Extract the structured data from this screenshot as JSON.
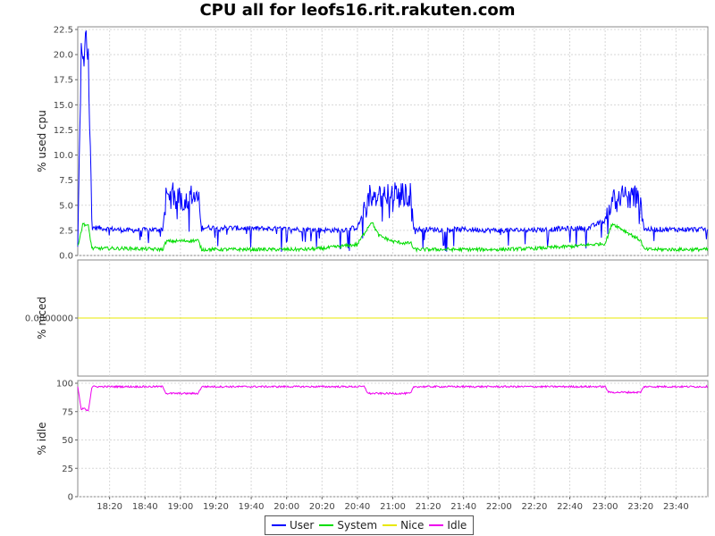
{
  "title": "CPU all for leofs16.rit.rakuten.com",
  "colors": {
    "User": "#0000ff",
    "System": "#00dd00",
    "Nice": "#e8e800",
    "Idle": "#ee00ee"
  },
  "legend": {
    "placement": "bottom",
    "items": [
      {
        "label": "User",
        "color": "#0000ff"
      },
      {
        "label": "System",
        "color": "#00dd00"
      },
      {
        "label": "Nice",
        "color": "#e8e800"
      },
      {
        "label": "Idle",
        "color": "#ee00ee"
      }
    ]
  },
  "chart_data": [
    {
      "type": "line",
      "ylabel": "% used cpu",
      "ylim": [
        0,
        22.5
      ],
      "yticks": [
        "0.0",
        "2.5",
        "5.0",
        "7.5",
        "10.0",
        "12.5",
        "15.0",
        "17.5",
        "20.0",
        "22.5"
      ],
      "grid": true,
      "series": [
        {
          "name": "User",
          "x": [
            "18:02",
            "18:04",
            "18:05",
            "18:07",
            "18:08",
            "18:10",
            "18:30",
            "18:50",
            "18:52",
            "19:10",
            "19:12",
            "19:40",
            "20:10",
            "20:30",
            "20:40",
            "20:44",
            "20:47",
            "21:00",
            "21:10",
            "21:12",
            "21:40",
            "22:00",
            "22:30",
            "22:40",
            "22:50",
            "23:00",
            "23:04",
            "23:20",
            "23:22",
            "23:40",
            "23:58"
          ],
          "y": [
            0.8,
            20,
            19,
            21.5,
            19.5,
            2.8,
            2.5,
            2.6,
            6,
            5.5,
            2.8,
            2.7,
            2.6,
            2.5,
            2.8,
            4.5,
            6,
            6,
            6,
            2.6,
            2.6,
            2.5,
            2.6,
            2.7,
            2.7,
            3.5,
            5.8,
            5.8,
            2.6,
            2.6,
            2.6
          ]
        },
        {
          "name": "System",
          "x": [
            "18:02",
            "18:05",
            "18:08",
            "18:10",
            "18:30",
            "18:50",
            "18:52",
            "19:10",
            "19:12",
            "19:40",
            "20:10",
            "20:20",
            "20:30",
            "20:40",
            "20:48",
            "20:52",
            "21:00",
            "21:08",
            "21:10",
            "21:12",
            "21:40",
            "22:00",
            "22:20",
            "22:40",
            "23:00",
            "23:04",
            "23:20",
            "23:22",
            "23:40",
            "23:58"
          ],
          "y": [
            1.0,
            3.2,
            2.9,
            0.7,
            0.7,
            0.6,
            1.4,
            1.5,
            0.6,
            0.6,
            0.6,
            0.7,
            0.9,
            1.1,
            3.4,
            2.0,
            1.4,
            1.2,
            1.3,
            0.6,
            0.6,
            0.6,
            0.7,
            0.9,
            1.2,
            3.2,
            1.5,
            0.6,
            0.6,
            0.6
          ]
        },
        {
          "name": "Idle",
          "hidden_in_panel": true,
          "x": [],
          "y": []
        }
      ]
    },
    {
      "type": "line",
      "ylabel": "% niced",
      "yticks": [
        "0.0000000"
      ],
      "grid": true,
      "series": [
        {
          "name": "Nice",
          "x": [
            "18:02",
            "23:58"
          ],
          "y": [
            0,
            0
          ]
        }
      ]
    },
    {
      "type": "line",
      "ylabel": "% idle",
      "ylim": [
        0,
        100
      ],
      "yticks": [
        "0",
        "25",
        "50",
        "75",
        "100"
      ],
      "grid": true,
      "xticks": [
        "18:20",
        "18:40",
        "19:00",
        "19:20",
        "19:40",
        "20:00",
        "20:20",
        "20:40",
        "21:00",
        "21:20",
        "21:40",
        "22:00",
        "22:20",
        "22:40",
        "23:00",
        "23:20",
        "23:40"
      ],
      "series": [
        {
          "name": "Idle",
          "x": [
            "18:02",
            "18:04",
            "18:05",
            "18:08",
            "18:10",
            "18:50",
            "18:52",
            "19:10",
            "19:12",
            "20:44",
            "20:46",
            "21:10",
            "21:12",
            "23:00",
            "23:02",
            "23:20",
            "23:22",
            "23:58"
          ],
          "y": [
            97,
            76,
            78,
            76,
            97,
            97,
            91,
            91,
            97,
            97,
            91,
            91,
            97,
            97,
            92,
            92,
            97,
            97
          ]
        }
      ]
    }
  ]
}
